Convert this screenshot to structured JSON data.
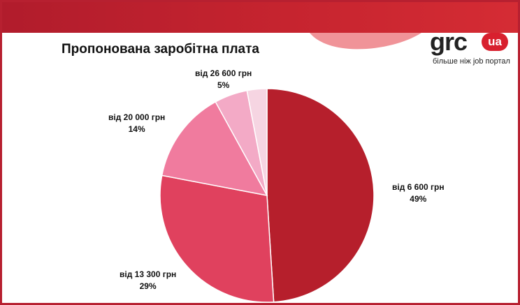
{
  "title": "Пропонована заробітна плата",
  "logo": {
    "text": "grc",
    "badge": "ua",
    "tagline": "більше ніж job портал"
  },
  "colors": {
    "brand": "#c8202e",
    "slice_1": "#b61f2c",
    "slice_2": "#e0415e",
    "slice_3": "#f07b9e",
    "slice_4": "#f3aac6",
    "slice_5": "#f6d5e2"
  },
  "chart_data": {
    "type": "pie",
    "title": "Пропонована заробітна плата",
    "categories": [
      "від 6 600 грн",
      "від 13 300 грн",
      "від 20 000 грн",
      "від 26 600 грн",
      ""
    ],
    "values": [
      49,
      29,
      14,
      5,
      3
    ],
    "value_labels": [
      "49%",
      "29%",
      "14%",
      "5%",
      ""
    ],
    "legend": "none"
  }
}
